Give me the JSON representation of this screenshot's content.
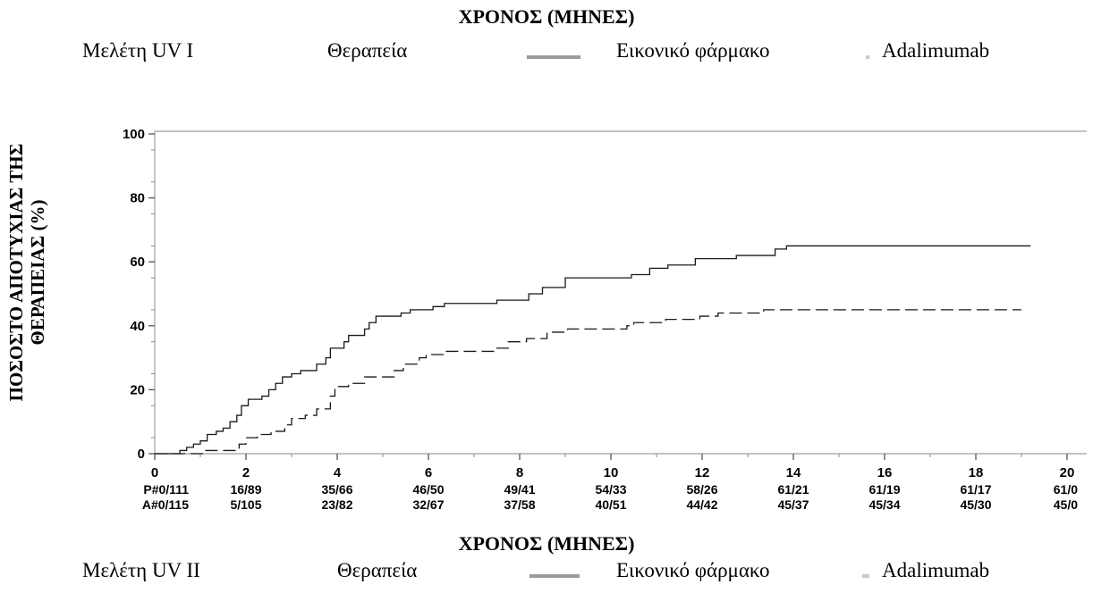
{
  "top_header": {
    "title": "ΧΡΟΝΟΣ (ΜΗΝΕΣ)",
    "study": "Μελέτη UV I",
    "therapy_label": "Θεραπεία",
    "placebo_label": "Εικονικό φάρμακο",
    "adalimumab_label": "Adalimumab"
  },
  "bottom_header": {
    "title": "ΧΡΟΝΟΣ (ΜΗΝΕΣ)",
    "study": "Μελέτη UV II",
    "therapy_label": "Θεραπεία",
    "placebo_label": "Εικονικό φάρμακο",
    "adalimumab_label": "Adalimumab"
  },
  "colors": {
    "line": "#1a1a1a",
    "axis": "#a0a0a0",
    "legend_placebo": "#9a9a9a",
    "legend_adalimumab": "#c8c8c8"
  },
  "chart_data": {
    "type": "line",
    "ylabel_line1": "ΠΟΣΟΣΤΟ ΑΠΟΤΥΧΙΑΣ ΤΗΣ",
    "ylabel_line2": "ΘΕΡΑΠΕΙΑΣ (%)",
    "xlim": [
      0,
      20
    ],
    "ylim": [
      0,
      100
    ],
    "x_ticks": [
      0,
      2,
      4,
      6,
      8,
      10,
      12,
      14,
      16,
      18,
      20
    ],
    "y_ticks": [
      0,
      20,
      40,
      60,
      80,
      100
    ],
    "series": [
      {
        "style": "solid",
        "steps": [
          [
            0,
            0
          ],
          [
            0.55,
            1
          ],
          [
            0.7,
            2
          ],
          [
            0.85,
            3
          ],
          [
            1.0,
            4
          ],
          [
            1.15,
            6
          ],
          [
            1.35,
            7
          ],
          [
            1.5,
            8
          ],
          [
            1.65,
            10
          ],
          [
            1.8,
            12
          ],
          [
            1.9,
            15
          ],
          [
            2.05,
            17
          ],
          [
            2.35,
            18
          ],
          [
            2.5,
            20
          ],
          [
            2.65,
            22
          ],
          [
            2.8,
            24
          ],
          [
            3.0,
            25
          ],
          [
            3.2,
            26
          ],
          [
            3.55,
            28
          ],
          [
            3.75,
            30
          ],
          [
            3.85,
            33
          ],
          [
            4.15,
            35
          ],
          [
            4.25,
            37
          ],
          [
            4.6,
            39
          ],
          [
            4.7,
            41
          ],
          [
            4.85,
            43
          ],
          [
            5.4,
            44
          ],
          [
            5.6,
            45
          ],
          [
            6.1,
            46
          ],
          [
            6.35,
            47
          ],
          [
            7.5,
            48
          ],
          [
            8.2,
            50
          ],
          [
            8.5,
            52
          ],
          [
            9.0,
            55
          ],
          [
            10.45,
            56
          ],
          [
            10.85,
            58
          ],
          [
            11.25,
            59
          ],
          [
            11.85,
            61
          ],
          [
            12.75,
            62
          ],
          [
            13.6,
            64
          ],
          [
            13.85,
            65
          ],
          [
            19.2,
            65
          ]
        ]
      },
      {
        "style": "dashed",
        "steps": [
          [
            0,
            0
          ],
          [
            1.1,
            1
          ],
          [
            1.85,
            3
          ],
          [
            2.0,
            5
          ],
          [
            2.25,
            6
          ],
          [
            2.55,
            7
          ],
          [
            2.85,
            9
          ],
          [
            3.0,
            11
          ],
          [
            3.3,
            12
          ],
          [
            3.55,
            14
          ],
          [
            3.85,
            18
          ],
          [
            3.95,
            21
          ],
          [
            4.25,
            22
          ],
          [
            4.6,
            24
          ],
          [
            5.25,
            26
          ],
          [
            5.45,
            28
          ],
          [
            5.8,
            30
          ],
          [
            5.95,
            31
          ],
          [
            6.35,
            32
          ],
          [
            7.45,
            33
          ],
          [
            7.75,
            35
          ],
          [
            8.15,
            36
          ],
          [
            8.6,
            38
          ],
          [
            9.05,
            39
          ],
          [
            10.35,
            40
          ],
          [
            10.5,
            41
          ],
          [
            11.2,
            42
          ],
          [
            11.95,
            43
          ],
          [
            12.35,
            44
          ],
          [
            13.35,
            45
          ],
          [
            19.0,
            45
          ]
        ]
      }
    ]
  },
  "risk_table": {
    "placebo": [
      "P#0/111",
      "16/89",
      "35/66",
      "46/50",
      "49/41",
      "54/33",
      "58/26",
      "61/21",
      "61/19",
      "61/17",
      "61/0"
    ],
    "adalimumab": [
      "A#0/115",
      "5/105",
      "23/82",
      "32/67",
      "37/58",
      "40/51",
      "44/42",
      "45/37",
      "45/34",
      "45/30",
      "45/0"
    ]
  }
}
